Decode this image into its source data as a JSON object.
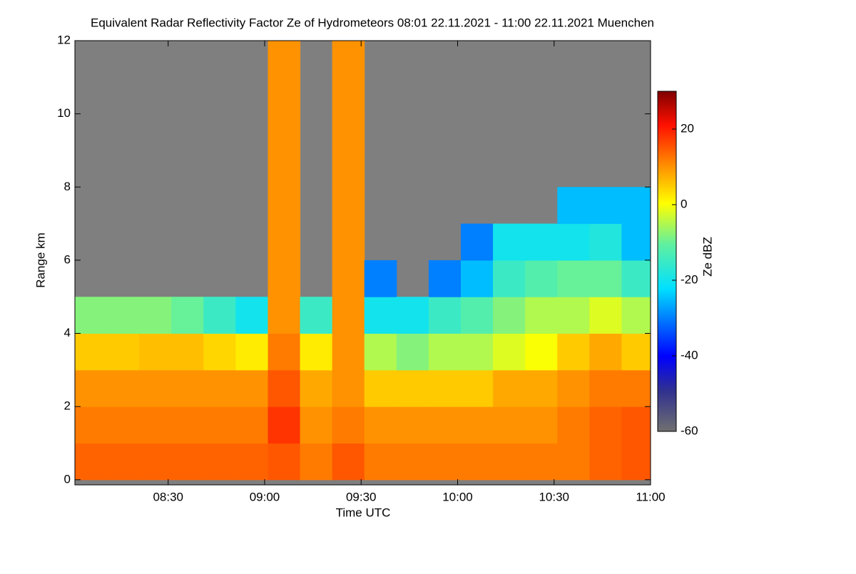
{
  "chart_data": {
    "type": "heatmap",
    "title": "Equivalent Radar Reflectivity Factor Ze of Hydrometeors   08:01 22.11.2021 - 11:00 22.11.2021 Muenchen",
    "x_label": "Time UTC",
    "y_label": "Range km",
    "colorbar_label": "Ze dBZ",
    "x_bins": [
      481,
      491,
      501,
      511,
      521,
      531,
      541,
      551,
      561,
      571,
      581,
      591,
      601,
      611,
      621,
      631,
      641,
      651,
      660
    ],
    "y_bins": [
      0,
      1,
      2,
      3,
      4,
      5,
      6,
      7,
      8,
      9,
      10,
      11,
      12
    ],
    "xlim": [
      481,
      660
    ],
    "ylim": [
      -0.14,
      12
    ],
    "xticks": [
      {
        "value": 510,
        "label": "08:30"
      },
      {
        "value": 540,
        "label": "09:00"
      },
      {
        "value": 570,
        "label": "09:30"
      },
      {
        "value": 600,
        "label": "10:00"
      },
      {
        "value": 630,
        "label": "10:30"
      },
      {
        "value": 660,
        "label": "11:00"
      }
    ],
    "yticks": [
      0,
      2,
      4,
      6,
      8,
      10,
      12
    ],
    "clim": [
      -60,
      30
    ],
    "cticks": [
      -60,
      -40,
      -20,
      0,
      20
    ],
    "values": [
      [
        14,
        12,
        10,
        5,
        -8,
        null,
        null,
        null,
        null,
        null,
        null,
        null
      ],
      [
        14,
        12,
        10,
        5,
        -8,
        null,
        null,
        null,
        null,
        null,
        null,
        null
      ],
      [
        14,
        12,
        10,
        6,
        -8,
        null,
        null,
        null,
        null,
        null,
        null,
        null
      ],
      [
        14,
        12,
        10,
        6,
        -10,
        null,
        null,
        null,
        null,
        null,
        null,
        null
      ],
      [
        14,
        12,
        10,
        4,
        -15,
        null,
        null,
        null,
        null,
        null,
        null,
        null
      ],
      [
        14,
        12,
        10,
        2,
        -20,
        null,
        null,
        null,
        null,
        null,
        null,
        null
      ],
      [
        15,
        18,
        15,
        12,
        10,
        10,
        10,
        10,
        10,
        10,
        10,
        10
      ],
      [
        12,
        10,
        8,
        2,
        -15,
        null,
        null,
        null,
        null,
        null,
        null,
        null
      ],
      [
        15,
        12,
        10,
        10,
        10,
        10,
        10,
        10,
        10,
        10,
        10,
        10
      ],
      [
        12,
        10,
        5,
        -5,
        -20,
        -30,
        null,
        null,
        null,
        null,
        null,
        null
      ],
      [
        12,
        10,
        5,
        -8,
        -20,
        null,
        null,
        null,
        null,
        null,
        null,
        null
      ],
      [
        12,
        10,
        5,
        -5,
        -15,
        -30,
        null,
        null,
        null,
        null,
        null,
        null
      ],
      [
        12,
        10,
        5,
        -5,
        -12,
        -25,
        -30,
        null,
        null,
        null,
        null,
        null
      ],
      [
        12,
        10,
        8,
        -2,
        -8,
        -15,
        -20,
        null,
        null,
        null,
        null,
        null
      ],
      [
        12,
        10,
        8,
        0,
        -5,
        -12,
        -20,
        null,
        null,
        null,
        null,
        null
      ],
      [
        12,
        12,
        10,
        5,
        -5,
        -10,
        -20,
        -25,
        null,
        null,
        null,
        null
      ],
      [
        14,
        14,
        12,
        8,
        -2,
        -10,
        -18,
        -25,
        null,
        null,
        null,
        null
      ],
      [
        15,
        15,
        12,
        5,
        -5,
        -15,
        -25,
        -25,
        null,
        null,
        null,
        null
      ]
    ]
  }
}
